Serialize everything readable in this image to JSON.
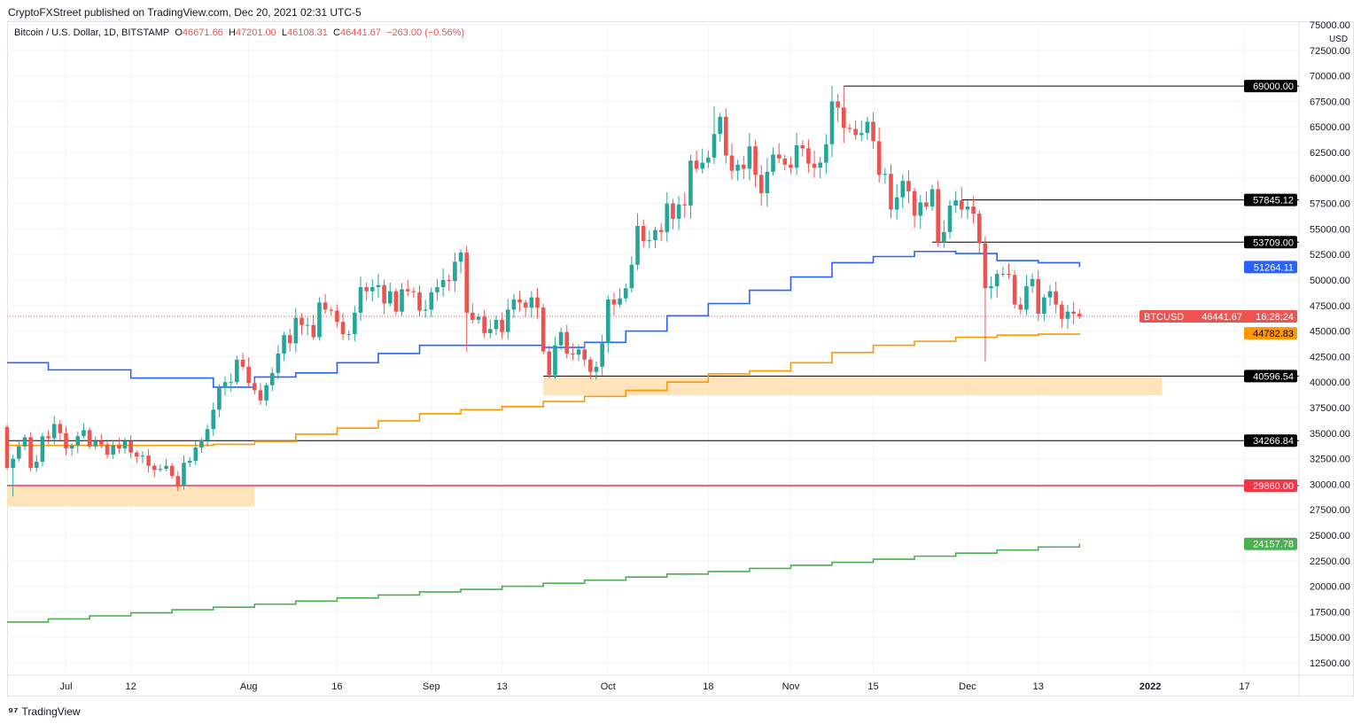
{
  "header": {
    "published": "CryptoFXStreet published on TradingView.com, Dec 20, 2021 02:31 UTC-5",
    "symbol": "Bitcoin / U.S. Dollar, 1D, BITSTAMP",
    "o_label": "O",
    "o": "46671.66",
    "h_label": "H",
    "h": "47201.00",
    "l_label": "L",
    "l": "46108.31",
    "c_label": "C",
    "c": "46441.67",
    "change": "−263.00 (−0.56%)"
  },
  "footer": {
    "brand": "TradingView"
  },
  "chart_data": {
    "type": "candlestick",
    "start_date": "2021-06-21",
    "ylim": [
      11250,
      76250
    ],
    "currency": "USD",
    "yticks": [
      75000,
      72500,
      70000,
      67500,
      65000,
      62500,
      60000,
      57500,
      55000,
      52500,
      50000,
      47500,
      45000,
      42500,
      40000,
      37500,
      35000,
      32500,
      30000,
      27500,
      25000,
      22500,
      20000,
      17500,
      15000,
      12500
    ],
    "xticks": [
      {
        "label": "Jul",
        "day": 10
      },
      {
        "label": "12",
        "day": 21
      },
      {
        "label": "Aug",
        "day": 41
      },
      {
        "label": "16",
        "day": 56
      },
      {
        "label": "Sep",
        "day": 72
      },
      {
        "label": "13",
        "day": 84
      },
      {
        "label": "Oct",
        "day": 102
      },
      {
        "label": "18",
        "day": 119
      },
      {
        "label": "Nov",
        "day": 133
      },
      {
        "label": "15",
        "day": 147
      },
      {
        "label": "Dec",
        "day": 163
      },
      {
        "label": "13",
        "day": 175
      },
      {
        "label": "2022",
        "day": 194,
        "bold": true
      },
      {
        "label": "17",
        "day": 210
      }
    ],
    "first_open": 35600,
    "closes": [
      31600,
      32500,
      33700,
      34600,
      31600,
      32200,
      34700,
      34500,
      35900,
      35000,
      33500,
      33800,
      34700,
      35300,
      33700,
      34200,
      33900,
      32900,
      33800,
      33500,
      34200,
      33100,
      32700,
      32800,
      31800,
      31400,
      31500,
      31800,
      30800,
      29800,
      32100,
      32300,
      33600,
      34300,
      35400,
      37300,
      39500,
      40000,
      40000,
      42200,
      41500,
      39900,
      39200,
      38200,
      39700,
      40900,
      42800,
      44600,
      43800,
      46300,
      45600,
      45600,
      44400,
      47800,
      47100,
      47000,
      45900,
      44700,
      44700,
      46800,
      49300,
      48900,
      49300,
      49500,
      47700,
      48900,
      46900,
      49100,
      48900,
      48800,
      47000,
      47100,
      48800,
      49300,
      50000,
      49900,
      51800,
      52700,
      46800,
      46100,
      46400,
      44800,
      45200,
      46100,
      44900,
      47100,
      48100,
      47800,
      47300,
      48300,
      47300,
      43000,
      40700,
      43600,
      44900,
      42800,
      42700,
      43200,
      42200,
      41000,
      41500,
      43800,
      48100,
      47600,
      48200,
      49200,
      51500,
      55300,
      53800,
      53900,
      54900,
      54700,
      57500,
      56000,
      57400,
      57300,
      61700,
      60900,
      61500,
      62000,
      64300,
      66000,
      62200,
      60700,
      61300,
      60900,
      63100,
      60300,
      58500,
      60600,
      62300,
      61900,
      61300,
      61000,
      63200,
      62900,
      61400,
      61000,
      61500,
      63300,
      67500,
      66900,
      64900,
      64800,
      64200,
      64400,
      65500,
      63600,
      60300,
      60400,
      56900,
      58100,
      59700,
      58700,
      56300,
      57600,
      57200,
      58900,
      53700,
      54700,
      57300,
      57800,
      56900,
      57200,
      56500,
      53600,
      49200,
      49400,
      50600,
      50600,
      50500,
      47600,
      47100,
      49400,
      50100,
      46700,
      48300,
      48900,
      47600,
      46200,
      46900,
      46700,
      46441.67
    ],
    "wick_overrides": [
      {
        "day": 166,
        "low": 42000
      },
      {
        "day": 142,
        "high": 69000
      },
      {
        "day": 78,
        "low": 43000
      },
      {
        "day": 29,
        "low": 29300
      },
      {
        "day": 1,
        "low": 28800
      },
      {
        "day": 120,
        "high": 67000
      }
    ],
    "series": [
      {
        "name": "Blue step line",
        "color": "#2962ff",
        "last_label": "51264.11",
        "weekly": [
          41900,
          41200,
          41200,
          40400,
          40400,
          39500,
          40500,
          40900,
          41900,
          42800,
          43600,
          43600,
          43600,
          43400,
          43900,
          45000,
          46500,
          47700,
          49000,
          50300,
          51700,
          52300,
          52800,
          52600,
          51900,
          51700,
          51264.11
        ]
      },
      {
        "name": "Orange step line",
        "color": "#ff9800",
        "last_label": "44782.83",
        "weekly": [
          33800,
          33800,
          33800,
          33800,
          33800,
          33900,
          34200,
          34900,
          35500,
          36200,
          36900,
          37300,
          37600,
          38100,
          38600,
          39200,
          40000,
          40800,
          41100,
          41900,
          42900,
          43600,
          44000,
          44400,
          44600,
          44700,
          44782.83
        ]
      },
      {
        "name": "Green step line",
        "color": "#4caf50",
        "last_label": "24157.78",
        "weekly": [
          16500,
          16800,
          17100,
          17400,
          17700,
          17950,
          18250,
          18550,
          18850,
          19150,
          19450,
          19700,
          20000,
          20300,
          20600,
          20900,
          21200,
          21450,
          21750,
          22050,
          22350,
          22650,
          22950,
          23250,
          23550,
          23850,
          24157.78
        ]
      }
    ],
    "levels": [
      {
        "value": 69000,
        "label": "69000.00",
        "from_day": 142,
        "color": "#000000"
      },
      {
        "value": 57845.12,
        "label": "57845.12",
        "from_day": 162,
        "color": "#000000"
      },
      {
        "value": 53709,
        "label": "53709.00",
        "from_day": 157,
        "color": "#000000"
      },
      {
        "value": 40596.54,
        "label": "40596.54",
        "from_day": 91,
        "color": "#000000"
      },
      {
        "value": 34266.84,
        "label": "34266.84",
        "from_day": 0,
        "color": "#000000"
      },
      {
        "value": 29860,
        "label": "29860.00",
        "from_day": 0,
        "color": "#f23645"
      }
    ],
    "zones": [
      {
        "from_day": 0,
        "to_day": 42,
        "top": 29700,
        "bottom": 27800,
        "color": "#ffe0b2"
      },
      {
        "from_day": 91,
        "to_day": 196,
        "top": 40550,
        "bottom": 38700,
        "color": "#ffe0b2"
      }
    ],
    "last_price": {
      "symbol": "BTCUSD",
      "price": "46441.67",
      "countdown": "16:28:24",
      "color": "#ef5350"
    },
    "colors": {
      "up": "#26a69a",
      "down": "#ef5350"
    }
  }
}
